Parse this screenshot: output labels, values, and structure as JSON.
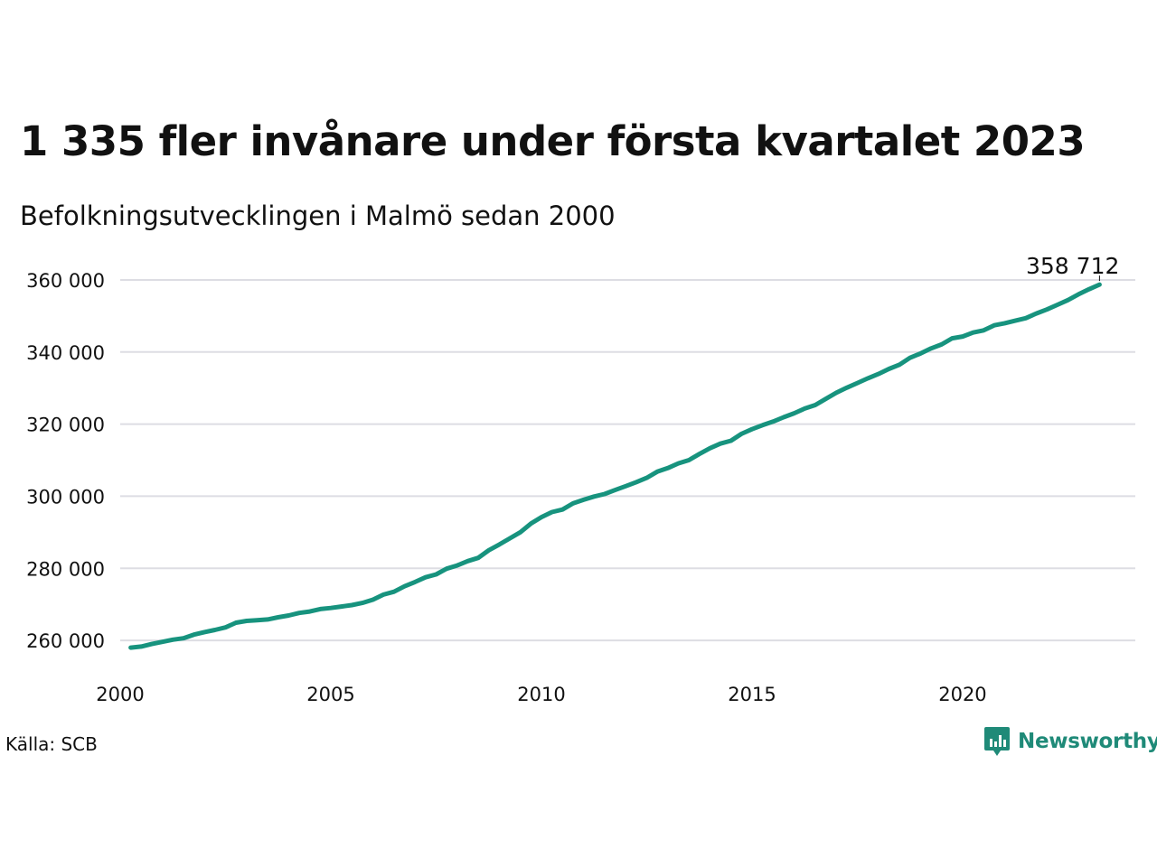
{
  "title": "1 335 fler invånare under första kvartalet 2023",
  "subtitle": "Befolkningsutvecklingen i Malmö sedan 2000",
  "source": "Källa: SCB",
  "brand": {
    "name": "Newsworthy",
    "icon": "bar-chart-speech-bubble-icon",
    "color": "#1f8a78"
  },
  "colors": {
    "line": "#17937e",
    "grid": "#dddde3"
  },
  "chart_data": {
    "type": "line",
    "title": "1 335 fler invånare under första kvartalet 2023",
    "subtitle": "Befolkningsutvecklingen i Malmö sedan 2000",
    "xlabel": "",
    "ylabel": "",
    "xlim": [
      2000,
      2024.1
    ],
    "ylim": [
      251000,
      365000
    ],
    "grid": "horizontal",
    "legend": "none",
    "y_ticks": [
      {
        "value": 260000,
        "label": "260 000"
      },
      {
        "value": 280000,
        "label": "280 000"
      },
      {
        "value": 300000,
        "label": "300 000"
      },
      {
        "value": 320000,
        "label": "320 000"
      },
      {
        "value": 340000,
        "label": "340 000"
      },
      {
        "value": 360000,
        "label": "360 000"
      }
    ],
    "x_ticks": [
      {
        "value": 2000,
        "label": "2000"
      },
      {
        "value": 2005,
        "label": "2005"
      },
      {
        "value": 2010,
        "label": "2010"
      },
      {
        "value": 2015,
        "label": "2015"
      },
      {
        "value": 2020,
        "label": "2020"
      }
    ],
    "end_label": "358 712",
    "series": [
      {
        "x": [
          2000.25,
          2000.5,
          2000.75,
          2001.0,
          2001.25,
          2001.5,
          2001.75,
          2002.0,
          2002.25,
          2002.5,
          2002.75,
          2003.0,
          2003.25,
          2003.5,
          2003.75,
          2004.0,
          2004.25,
          2004.5,
          2004.75,
          2005.0,
          2005.25,
          2005.5,
          2005.75,
          2006.0,
          2006.25,
          2006.5,
          2006.75,
          2007.0,
          2007.25,
          2007.5,
          2007.75,
          2008.0,
          2008.25,
          2008.5,
          2008.75,
          2009.0,
          2009.25,
          2009.5,
          2009.75,
          2010.0,
          2010.25,
          2010.5,
          2010.75,
          2011.0,
          2011.25,
          2011.5,
          2011.75,
          2012.0,
          2012.25,
          2012.5,
          2012.75,
          2013.0,
          2013.25,
          2013.5,
          2013.75,
          2014.0,
          2014.25,
          2014.5,
          2014.75,
          2015.0,
          2015.25,
          2015.5,
          2015.75,
          2016.0,
          2016.25,
          2016.5,
          2016.75,
          2017.0,
          2017.25,
          2017.5,
          2017.75,
          2018.0,
          2018.25,
          2018.5,
          2018.75,
          2019.0,
          2019.25,
          2019.5,
          2019.75,
          2020.0,
          2020.25,
          2020.5,
          2020.75,
          2021.0,
          2021.25,
          2021.5,
          2021.75,
          2022.0,
          2022.25,
          2022.5,
          2022.75,
          2023.0,
          2023.25
        ],
        "values": [
          258000,
          258300,
          259000,
          259600,
          260200,
          260600,
          261600,
          262300,
          262900,
          263600,
          264900,
          265400,
          265600,
          265800,
          266400,
          266900,
          267600,
          268000,
          268700,
          269000,
          269400,
          269800,
          270400,
          271300,
          272700,
          273500,
          275000,
          276200,
          277500,
          278300,
          279900,
          280800,
          282000,
          282900,
          285000,
          286600,
          288300,
          290000,
          292400,
          294200,
          295600,
          296300,
          298000,
          299000,
          299900,
          300600,
          301700,
          302800,
          303900,
          305100,
          306800,
          307800,
          309100,
          310000,
          311700,
          313300,
          314600,
          315400,
          317300,
          318600,
          319700,
          320700,
          321900,
          323000,
          324300,
          325300,
          327000,
          328700,
          330100,
          331400,
          332700,
          333900,
          335300,
          336500,
          338400,
          339600,
          341000,
          342100,
          343800,
          344300,
          345400,
          346000,
          347400,
          348000,
          348700,
          349400,
          350700,
          351800,
          353100,
          354400,
          356000,
          357400,
          358712
        ]
      }
    ]
  }
}
